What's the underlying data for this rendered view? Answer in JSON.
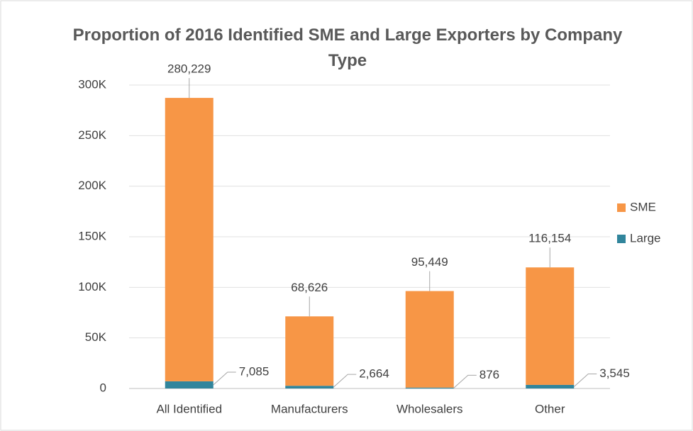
{
  "chart_data": {
    "type": "stacked_bar",
    "title": "Proportion of 2016 Identified SME and Large Exporters by Company Type",
    "categories": [
      "All Identified",
      "Manufacturers",
      "Wholesalers",
      "Other"
    ],
    "series": [
      {
        "name": "Large",
        "color": "#31859c",
        "values": [
          7085,
          2664,
          876,
          3545
        ],
        "value_labels": [
          "7,085",
          "2,664",
          "876",
          "3,545"
        ]
      },
      {
        "name": "SME",
        "color": "#f79646",
        "values": [
          280229,
          68626,
          95449,
          116154
        ],
        "value_labels": [
          "280,229",
          "68,626",
          "95,449",
          "116,154"
        ]
      }
    ],
    "ylim": [
      0,
      300000
    ],
    "yticks": [
      0,
      {
        "value": 50000,
        "label": "50K"
      },
      {
        "value": 100000,
        "label": "100K"
      },
      {
        "value": 150000,
        "label": "150K"
      },
      {
        "value": 200000,
        "label": "200K"
      },
      {
        "value": 250000,
        "label": "250K"
      },
      {
        "value": 300000,
        "label": "300K"
      }
    ],
    "grid": true,
    "legend": "right"
  }
}
